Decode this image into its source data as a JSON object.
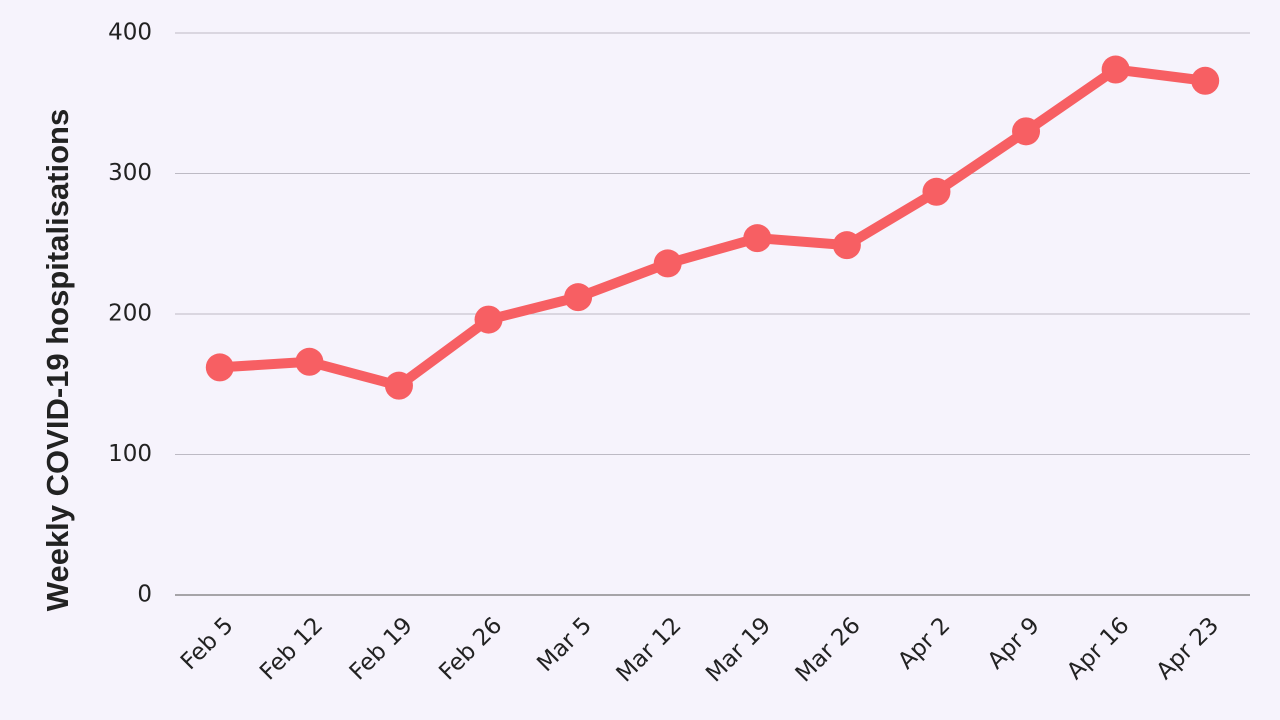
{
  "chart_data": {
    "type": "line",
    "y_label": "Weekly COVID-19 hospitalisations",
    "categories": [
      "Feb 5",
      "Feb 12",
      "Feb 19",
      "Feb 26",
      "Mar 5",
      "Mar 12",
      "Mar 19",
      "Mar 26",
      "Apr 2",
      "Apr 9",
      "Apr 16",
      "Apr 23"
    ],
    "values": [
      162,
      166,
      149,
      196,
      212,
      236,
      254,
      249,
      287,
      330,
      374,
      366
    ],
    "color": "#f75f63",
    "ylim": [
      0,
      400
    ],
    "yticks": [
      0,
      100,
      200,
      300,
      400
    ],
    "grid": true
  }
}
